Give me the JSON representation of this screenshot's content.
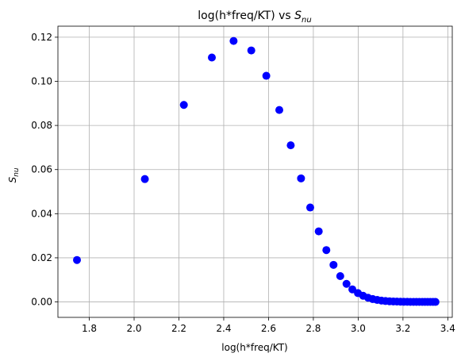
{
  "chart_data": {
    "type": "scatter",
    "title": "log(h*freq/KT) vs S",
    "title_sub": "nu",
    "xlabel": "log(h*freq/KT)",
    "ylabel": "S",
    "ylabel_sub": "nu",
    "xlim": [
      1.66,
      3.42
    ],
    "ylim": [
      -0.007,
      0.125
    ],
    "xticks": [
      1.8,
      2.0,
      2.2,
      2.4,
      2.6,
      2.8,
      3.0,
      3.2,
      3.4
    ],
    "xtick_labels": [
      "1.8",
      "2.0",
      "2.2",
      "2.4",
      "2.6",
      "2.8",
      "3.0",
      "3.2",
      "3.4"
    ],
    "yticks": [
      0.0,
      0.02,
      0.04,
      0.06,
      0.08,
      0.1,
      0.12
    ],
    "ytick_labels": [
      "0.00",
      "0.02",
      "0.04",
      "0.06",
      "0.08",
      "0.10",
      "0.12"
    ],
    "grid": true,
    "marker_color": "#0000ff",
    "grid_color": "#b0b0b0",
    "points": [
      [
        1.745,
        0.019
      ],
      [
        2.048,
        0.0557
      ],
      [
        2.222,
        0.0893
      ],
      [
        2.347,
        0.1108
      ],
      [
        2.444,
        0.1183
      ],
      [
        2.523,
        0.114
      ],
      [
        2.59,
        0.1025
      ],
      [
        2.648,
        0.087
      ],
      [
        2.699,
        0.071
      ],
      [
        2.745,
        0.056
      ],
      [
        2.786,
        0.0428
      ],
      [
        2.824,
        0.032
      ],
      [
        2.858,
        0.0235
      ],
      [
        2.89,
        0.0168
      ],
      [
        2.92,
        0.0117
      ],
      [
        2.948,
        0.0082
      ],
      [
        2.974,
        0.0057
      ],
      [
        2.999,
        0.004
      ],
      [
        3.022,
        0.0028
      ],
      [
        3.044,
        0.0019
      ],
      [
        3.065,
        0.0013
      ],
      [
        3.085,
        0.0009
      ],
      [
        3.104,
        0.0006
      ],
      [
        3.122,
        0.0004
      ],
      [
        3.14,
        0.0003
      ],
      [
        3.157,
        0.0002
      ],
      [
        3.173,
        0.00015
      ],
      [
        3.189,
        0.0001
      ],
      [
        3.204,
        7e-05
      ],
      [
        3.219,
        5e-05
      ],
      [
        3.233,
        3e-05
      ],
      [
        3.247,
        2e-05
      ],
      [
        3.26,
        1e-05
      ],
      [
        3.273,
        1e-05
      ],
      [
        3.286,
        0.0
      ],
      [
        3.298,
        0.0
      ],
      [
        3.31,
        0.0
      ],
      [
        3.322,
        0.0
      ],
      [
        3.334,
        0.0
      ],
      [
        3.345,
        0.0
      ]
    ]
  }
}
